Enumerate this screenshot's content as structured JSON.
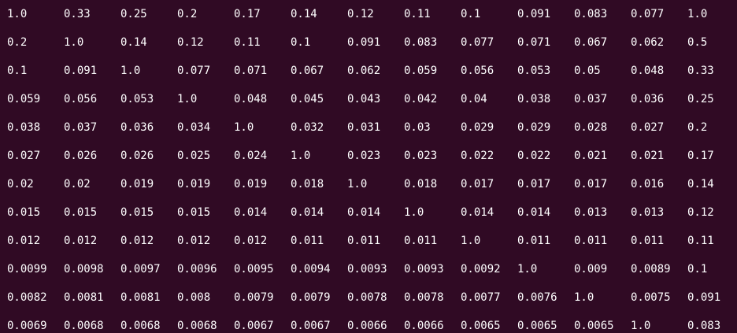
{
  "terminal": {
    "rows": [
      [
        "1.0",
        "0.33",
        "0.25",
        "0.2",
        "0.17",
        "0.14",
        "0.12",
        "0.11",
        "0.1",
        "0.091",
        "0.083",
        "0.077",
        "1.0"
      ],
      [
        "0.2",
        "1.0",
        "0.14",
        "0.12",
        "0.11",
        "0.1",
        "0.091",
        "0.083",
        "0.077",
        "0.071",
        "0.067",
        "0.062",
        "0.5"
      ],
      [
        "0.1",
        "0.091",
        "1.0",
        "0.077",
        "0.071",
        "0.067",
        "0.062",
        "0.059",
        "0.056",
        "0.053",
        "0.05",
        "0.048",
        "0.33"
      ],
      [
        "0.059",
        "0.056",
        "0.053",
        "1.0",
        "0.048",
        "0.045",
        "0.043",
        "0.042",
        "0.04",
        "0.038",
        "0.037",
        "0.036",
        "0.25"
      ],
      [
        "0.038",
        "0.037",
        "0.036",
        "0.034",
        "1.0",
        "0.032",
        "0.031",
        "0.03",
        "0.029",
        "0.029",
        "0.028",
        "0.027",
        "0.2"
      ],
      [
        "0.027",
        "0.026",
        "0.026",
        "0.025",
        "0.024",
        "1.0",
        "0.023",
        "0.023",
        "0.022",
        "0.022",
        "0.021",
        "0.021",
        "0.17"
      ],
      [
        "0.02",
        "0.02",
        "0.019",
        "0.019",
        "0.019",
        "0.018",
        "1.0",
        "0.018",
        "0.017",
        "0.017",
        "0.017",
        "0.016",
        "0.14"
      ],
      [
        "0.015",
        "0.015",
        "0.015",
        "0.015",
        "0.014",
        "0.014",
        "0.014",
        "1.0",
        "0.014",
        "0.014",
        "0.013",
        "0.013",
        "0.12"
      ],
      [
        "0.012",
        "0.012",
        "0.012",
        "0.012",
        "0.012",
        "0.011",
        "0.011",
        "0.011",
        "1.0",
        "0.011",
        "0.011",
        "0.011",
        "0.11"
      ],
      [
        "0.0099",
        "0.0098",
        "0.0097",
        "0.0096",
        "0.0095",
        "0.0094",
        "0.0093",
        "0.0093",
        "0.0092",
        "1.0",
        "0.009",
        "0.0089",
        "0.1"
      ],
      [
        "0.0082",
        "0.0081",
        "0.0081",
        "0.008",
        "0.0079",
        "0.0079",
        "0.0078",
        "0.0078",
        "0.0077",
        "0.0076",
        "1.0",
        "0.0075",
        "0.091"
      ],
      [
        "0.0069",
        "0.0068",
        "0.0068",
        "0.0068",
        "0.0067",
        "0.0067",
        "0.0066",
        "0.0066",
        "0.0065",
        "0.0065",
        "0.0065",
        "1.0",
        "0.083"
      ]
    ]
  },
  "colors": {
    "background": "#300a24",
    "foreground": "#ffffff"
  }
}
